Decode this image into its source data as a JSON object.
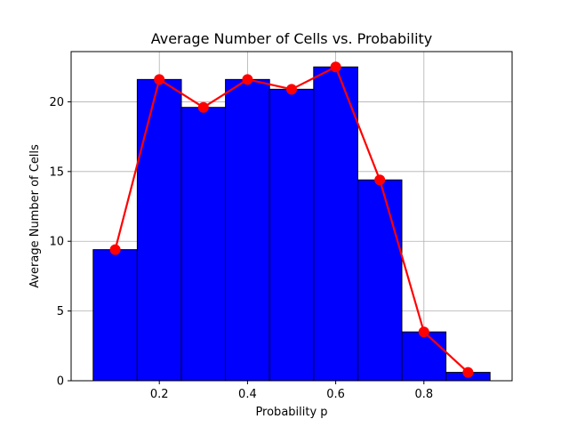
{
  "chart_data": {
    "type": "bar",
    "title": "Average Number of Cells vs. Probability",
    "xlabel": "Probability p",
    "ylabel": "Average Number of Cells",
    "x": [
      0.1,
      0.2,
      0.3,
      0.4,
      0.5,
      0.6,
      0.7,
      0.8,
      0.9
    ],
    "bar_width": 0.1,
    "series": [
      {
        "kind": "bar",
        "values": [
          9.4,
          21.6,
          19.6,
          21.6,
          20.9,
          22.5,
          14.4,
          3.5,
          0.6
        ],
        "color": "#0000ff",
        "edgecolor": "#000000"
      },
      {
        "kind": "line",
        "values": [
          9.4,
          21.6,
          19.6,
          21.6,
          20.9,
          22.5,
          14.4,
          3.5,
          0.6
        ],
        "color": "#ff0000",
        "marker": "circle"
      }
    ],
    "xlim": [
      0.0,
      1.0
    ],
    "ylim": [
      0,
      23.6
    ],
    "xticks": [
      0.2,
      0.4,
      0.6,
      0.8
    ],
    "xtick_labels": [
      "0.2",
      "0.4",
      "0.6",
      "0.8"
    ],
    "yticks": [
      0,
      5,
      10,
      15,
      20
    ],
    "ytick_labels": [
      "0",
      "5",
      "10",
      "15",
      "20"
    ],
    "grid": true
  }
}
